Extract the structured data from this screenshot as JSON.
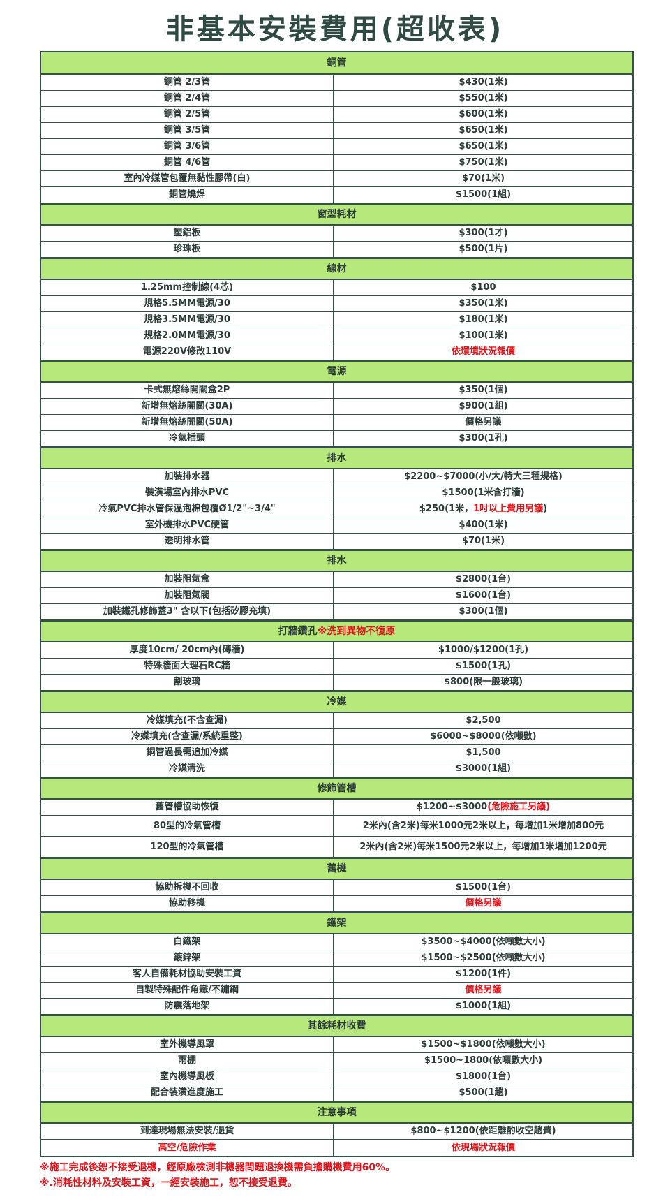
{
  "title": "非基本安裝費用(超收表)",
  "colors": {
    "header_bg": "#b6e87b",
    "border": "#34524a",
    "text": "#2b3b37",
    "highlight_red": "#e0141a"
  },
  "sections": [
    {
      "title": "銅管",
      "items": [
        {
          "name": "銅管 2/3管",
          "price": "$430(1米)"
        },
        {
          "name": "銅管 2/4管",
          "price": "$550(1米)"
        },
        {
          "name": "銅管 2/5管",
          "price": "$600(1米)"
        },
        {
          "name": "銅管 3/5管",
          "price": "$650(1米)"
        },
        {
          "name": "銅管 3/6管",
          "price": "$650(1米)"
        },
        {
          "name": "銅管 4/6管",
          "price": "$750(1米)"
        },
        {
          "name": "室內冷媒管包覆無黏性膠帶(白)",
          "price": "$70(1米)"
        },
        {
          "name": "銅管燒焊",
          "price": "$1500(1組)"
        }
      ]
    },
    {
      "title": "窗型耗材",
      "items": [
        {
          "name": "塑鋁板",
          "price": "$300(1才)"
        },
        {
          "name": "珍珠板",
          "price": "$500(1片)"
        }
      ]
    },
    {
      "title": "線材",
      "items": [
        {
          "name": "1.25mm控制線(4芯)",
          "price": "$100"
        },
        {
          "name": "規格5.5MM電源/30",
          "price": "$350(1米)"
        },
        {
          "name": "規格3.5MM電源/30",
          "price": "$180(1米)"
        },
        {
          "name": "規格2.0MM電源/30",
          "price": "$100(1米)"
        },
        {
          "name": "電源220V修改110V",
          "price": "",
          "price_red": "依環境狀況報價"
        }
      ]
    },
    {
      "title": "電源",
      "items": [
        {
          "name": "卡式無熔絲開關盒2P",
          "price": "$350(1個)"
        },
        {
          "name": "新增無熔絲開關(30A)",
          "price": "$900(1組)"
        },
        {
          "name": "新增無熔絲開關(50A)",
          "price": "價格另議"
        },
        {
          "name": "冷氣插頭",
          "price": "$300(1孔)"
        }
      ]
    },
    {
      "title": "排水",
      "items": [
        {
          "name": "加裝排水器",
          "price": "$2200~$7000(小/大/特大三種規格)"
        },
        {
          "name": "裝潢場室內排水PVC",
          "price": "$1500(1米含打牆)"
        },
        {
          "name": "冷氣PVC排水管保溫泡棉包覆Ø1/2\"~3/4\"",
          "price": "$250(1米，",
          "price_red": "1吋以上費用另議",
          "price_tail": ")"
        },
        {
          "name": "室外機排水PVC硬管",
          "price": "$400(1米)"
        },
        {
          "name": "透明排水管",
          "price": "$70(1米)"
        }
      ]
    },
    {
      "title": "排水",
      "items": [
        {
          "name": "加裝阻氣盒",
          "price": "$2800(1台)"
        },
        {
          "name": "加裝阻氣閥",
          "price": "$1600(1台)"
        },
        {
          "name": "加裝鐵孔修飾蓋3\" 含以下(包括矽膠充填)",
          "price": "$300(1個)"
        }
      ]
    },
    {
      "title": "打牆鑽孔 ",
      "title_red": "※洗到異物不復原",
      "items": [
        {
          "name": "厚度10cm/ 20cm內(磚牆)",
          "price": "$1000/$1200(1孔)"
        },
        {
          "name": "特殊牆面大理石RC牆",
          "price": "$1500(1孔)"
        },
        {
          "name": "割玻璃",
          "price": "$800(限一般玻璃)"
        }
      ]
    },
    {
      "title": "冷媒",
      "items": [
        {
          "name": "冷媒填充(不含查漏)",
          "price": "$2,500"
        },
        {
          "name": "冷媒填充(含查漏/系統重整)",
          "price": "$6000~$8000(依噸數)"
        },
        {
          "name": "銅管過長需追加冷媒",
          "price": "$1,500"
        },
        {
          "name": "冷媒清洗",
          "price": "$3000(1組)"
        }
      ]
    },
    {
      "title": "修飾管槽",
      "items": [
        {
          "name": "舊管槽協助恢復",
          "price": "$1200~$3000",
          "price_red": "(危險施工另議)"
        },
        {
          "name": "80型的冷氣管槽",
          "price": "2米內(含2米)每米1000元2米以上，每增加1米增加800元",
          "tall": true
        },
        {
          "name": "120型的冷氣管槽",
          "price": "2米內(含2米)每米1500元2米以上，每增加1米增加1200元",
          "tall": true
        }
      ]
    },
    {
      "title": "舊機",
      "items": [
        {
          "name": "協助拆機不回收",
          "price": "$1500(1台)"
        },
        {
          "name": "協助移機",
          "price": "",
          "price_red": "價格另議"
        }
      ]
    },
    {
      "title": "鐵架",
      "items": [
        {
          "name": "白鐵架",
          "price": "$3500~$4000(依噸數大小)"
        },
        {
          "name": "鍍鋅架",
          "price": "$1500~$2500(依噸數大小)"
        },
        {
          "name": "客人自備耗材協助安裝工資",
          "price": "$1200(1件)"
        },
        {
          "name": "自製特殊配件角鐵/不鏽鋼",
          "price": "",
          "price_red": "價格另議"
        },
        {
          "name": "防震落地架",
          "price": "$1000(1組)"
        }
      ]
    },
    {
      "title": "其餘耗材收費",
      "items": [
        {
          "name": "室外機導風罩",
          "price": "$1500~$1800(依噸數大小)"
        },
        {
          "name": "雨棚",
          "price": "$1500~1800(依噸數大小)"
        },
        {
          "name": "室內機導風板",
          "price": "$1800(1台)"
        },
        {
          "name": "配合裝潢進度施工",
          "price": "$500(1趟)"
        }
      ]
    },
    {
      "title": "注意事項",
      "items": [
        {
          "name": "到達現場無法安裝/退貨",
          "price": "$800~$1200(依距離酌收空趟費)"
        },
        {
          "name": "",
          "name_red": "高空/危險作業",
          "price": "",
          "price_red": "依現場狀況報價"
        }
      ]
    }
  ],
  "notes": [
    "※施工完成後恕不接受退機，經原廠檢測非機器問題退換機需負擔購機費用60%。",
    "※.消耗性材料及安裝工資，一經安裝施工，恕不接受退費。"
  ]
}
